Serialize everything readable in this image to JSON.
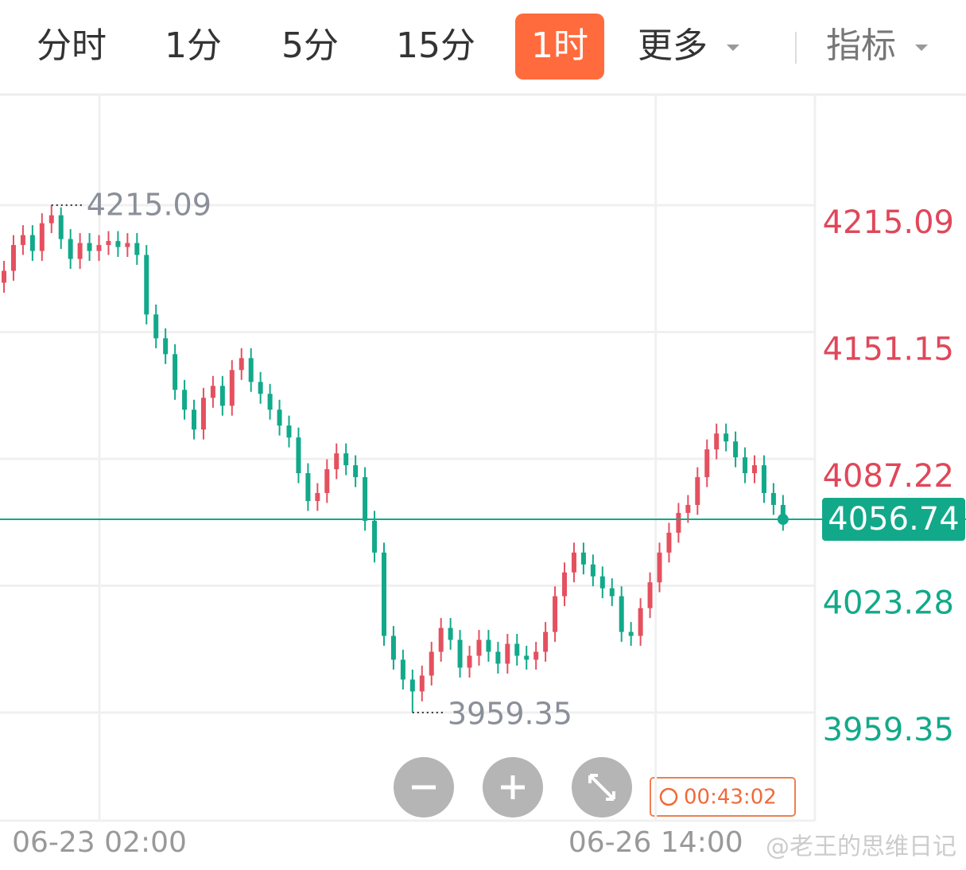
{
  "tabs": {
    "items": [
      "分时",
      "1分",
      "5分",
      "15分",
      "1时",
      "更多",
      "指标"
    ],
    "active": 4
  },
  "timer": "00:43:02",
  "watermark": "@老王的思维日记",
  "chart_data": {
    "type": "candlestick",
    "up_color": "#e5505f",
    "down_color": "#12a98a",
    "grid": true,
    "ylim": [
      3904.85,
      4270.4
    ],
    "yticks": [
      3959.35,
      4023.28,
      4087.22,
      4151.15,
      4215.09
    ],
    "xlim": [
      -0.42,
      85.36
    ],
    "xticks": [
      {
        "value": 10.04,
        "label": "06-23 02:00"
      },
      {
        "value": 68.6,
        "label": "06-26 14:00"
      }
    ],
    "open": [
      4176,
      4182,
      4195,
      4200,
      4192,
      4206,
      4210,
      4198,
      4188,
      4196,
      4192,
      4195,
      4197,
      4194,
      4196,
      4190,
      4160,
      4148,
      4140,
      4122,
      4112,
      4102,
      4118,
      4124,
      4114,
      4132,
      4138,
      4126,
      4120,
      4112,
      4104,
      4098,
      4080,
      4066,
      4070,
      4082,
      4090,
      4084,
      4078,
      4056,
      4040,
      3998,
      3986,
      3976,
      3970,
      3978,
      3990,
      4002,
      3996,
      3982,
      3988,
      3996,
      3990,
      3984,
      3994,
      3988,
      3986,
      3990,
      4000,
      4018,
      4030,
      4040,
      4034,
      4028,
      4022,
      4018,
      4000,
      3998,
      4012,
      4025,
      4040,
      4050,
      4060,
      4064,
      4078,
      4092,
      4100,
      4096,
      4088,
      4080,
      4084,
      4070,
      4064
    ],
    "high": [
      4187,
      4200,
      4205,
      4205,
      4211,
      4215.09,
      4214,
      4203,
      4201,
      4201,
      4200,
      4202,
      4202,
      4201,
      4201,
      4195,
      4165,
      4153,
      4145,
      4127,
      4117,
      4123,
      4129,
      4129,
      4137,
      4143,
      4143,
      4131,
      4125,
      4117,
      4109,
      4103,
      4085,
      4075,
      4087,
      4095,
      4095,
      4089,
      4083,
      4061,
      4045,
      4003,
      3991,
      3981,
      3983,
      3995,
      4007,
      4007,
      4001,
      3993,
      4001,
      4001,
      3995,
      3999,
      3999,
      3993,
      3995,
      4005,
      4023,
      4035,
      4045,
      4045,
      4039,
      4033,
      4027,
      4023,
      4005,
      4017,
      4030,
      4045,
      4055,
      4065,
      4069,
      4083,
      4097,
      4105,
      4105,
      4101,
      4093,
      4089,
      4089,
      4075,
      4069
    ],
    "low": [
      4171,
      4177,
      4190,
      4187,
      4187,
      4201,
      4193,
      4183,
      4183,
      4187,
      4187,
      4190,
      4189,
      4189,
      4185,
      4155,
      4143,
      4135,
      4117,
      4107,
      4097,
      4097,
      4113,
      4109,
      4109,
      4127,
      4121,
      4115,
      4107,
      4099,
      4093,
      4075,
      4061,
      4061,
      4065,
      4077,
      4079,
      4073,
      4051,
      4035,
      3993,
      3981,
      3971,
      3959.35,
      3965,
      3973,
      3985,
      3991,
      3977,
      3977,
      3983,
      3985,
      3979,
      3979,
      3983,
      3981,
      3981,
      3985,
      3995,
      4013,
      4025,
      4029,
      4023,
      4017,
      4013,
      3995,
      3993,
      3993,
      4007,
      4020,
      4035,
      4045,
      4055,
      4059,
      4073,
      4087,
      4091,
      4083,
      4075,
      4075,
      4065,
      4059,
      4051
    ],
    "close": [
      4182,
      4195,
      4200,
      4192,
      4206,
      4210,
      4198,
      4188,
      4196,
      4192,
      4195,
      4197,
      4194,
      4196,
      4190,
      4160,
      4148,
      4140,
      4122,
      4112,
      4102,
      4118,
      4124,
      4114,
      4132,
      4138,
      4126,
      4120,
      4112,
      4104,
      4098,
      4080,
      4066,
      4070,
      4082,
      4090,
      4084,
      4078,
      4056,
      4040,
      3998,
      3986,
      3976,
      3970,
      3978,
      3990,
      4002,
      3996,
      3982,
      3988,
      3996,
      3990,
      3984,
      3994,
      3988,
      3986,
      3990,
      4000,
      4018,
      4030,
      4040,
      4034,
      4028,
      4022,
      4018,
      4000,
      3998,
      4012,
      4025,
      4040,
      4050,
      4060,
      4064,
      4078,
      4092,
      4100,
      4096,
      4088,
      4080,
      4084,
      4070,
      4064,
      4056.74
    ]
  }
}
